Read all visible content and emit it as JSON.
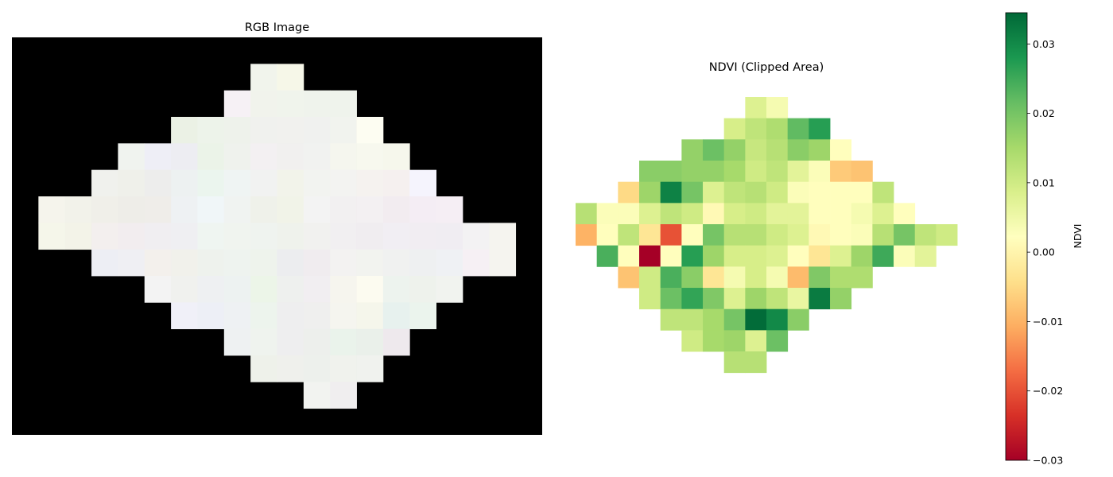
{
  "chart_data": [
    {
      "type": "heatmap",
      "title": "RGB Image",
      "axis": "off",
      "grid": false,
      "rows": 15,
      "cols": 20,
      "background": "#000000",
      "cells": [
        [
          "#000000",
          "#000000",
          "#000000",
          "#000000",
          "#000000",
          "#000000",
          "#000000",
          "#000000",
          "#000000",
          "#000000",
          "#000000",
          "#000000",
          "#000000",
          "#000000",
          "#000000",
          "#000000",
          "#000000",
          "#000000",
          "#000000",
          "#000000"
        ],
        [
          "#000000",
          "#000000",
          "#000000",
          "#000000",
          "#000000",
          "#000000",
          "#000000",
          "#000000",
          "#000000",
          "#f1f4ec",
          "#f6f7e8",
          "#000000",
          "#000000",
          "#000000",
          "#000000",
          "#000000",
          "#000000",
          "#000000",
          "#000000",
          "#000000"
        ],
        [
          "#000000",
          "#000000",
          "#000000",
          "#000000",
          "#000000",
          "#000000",
          "#000000",
          "#000000",
          "#f6f1f5",
          "#f1f3ec",
          "#f0f4ec",
          "#eff3ec",
          "#eff3ec",
          "#000000",
          "#000000",
          "#000000",
          "#000000",
          "#000000",
          "#000000",
          "#000000"
        ],
        [
          "#000000",
          "#000000",
          "#000000",
          "#000000",
          "#000000",
          "#000000",
          "#ebf1e5",
          "#edf3ea",
          "#eef2eb",
          "#f0f1ee",
          "#f1f1ee",
          "#f0f1ef",
          "#f1f3ee",
          "#fdfdf2",
          "#000000",
          "#000000",
          "#000000",
          "#000000",
          "#000000",
          "#000000"
        ],
        [
          "#000000",
          "#000000",
          "#000000",
          "#000000",
          "#f0f3ef",
          "#eeeef6",
          "#ededf2",
          "#ebf3e8",
          "#eff2ed",
          "#f3f0f2",
          "#f1f0ef",
          "#f1f2f0",
          "#f5f6ee",
          "#f7f8ee",
          "#f6f7ec",
          "#000000",
          "#000000",
          "#000000",
          "#000000",
          "#000000"
        ],
        [
          "#000000",
          "#000000",
          "#000000",
          "#f0f1ed",
          "#eff0ea",
          "#ededec",
          "#edf1f1",
          "#ebf5ee",
          "#eff4f3",
          "#f1f2f1",
          "#f2f3ea",
          "#f2f3f0",
          "#f3f3f1",
          "#f5f2ef",
          "#f5f0ef",
          "#f5f4fd",
          "#000000",
          "#000000",
          "#000000",
          "#000000"
        ],
        [
          "#000000",
          "#f5f4ec",
          "#f2f2ea",
          "#f0efe9",
          "#eeede8",
          "#efede9",
          "#eef1f3",
          "#f0f6f8",
          "#f0f3f1",
          "#eff1ea",
          "#f1f3e8",
          "#f3f3f3",
          "#f2f0f1",
          "#f3f0f2",
          "#f2ecf0",
          "#f4edf4",
          "#f5eef4",
          "#000000",
          "#000000",
          "#000000"
        ],
        [
          "#000000",
          "#f5f6ea",
          "#f3f3e8",
          "#f3efee",
          "#f2edef",
          "#f0eef1",
          "#efeff2",
          "#eff5f1",
          "#f0f4ef",
          "#eff3ef",
          "#eff2ec",
          "#f1f1ef",
          "#f1eff1",
          "#f0edf0",
          "#f1eef3",
          "#f1edf2",
          "#f0edf2",
          "#f3f2f3",
          "#f5f4ef",
          "#000000"
        ],
        [
          "#000000",
          "#000000",
          "#000000",
          "#edeef4",
          "#efeff3",
          "#f3f0ec",
          "#f1f1eb",
          "#eef2ed",
          "#eef3ef",
          "#eef3ec",
          "#ecedef",
          "#f0ecef",
          "#f3f2f1",
          "#f2f3ef",
          "#f0f1f0",
          "#eef0f1",
          "#eff1f4",
          "#f6f0f4",
          "#f5f4ef",
          "#000000"
        ],
        [
          "#000000",
          "#000000",
          "#000000",
          "#000000",
          "#000000",
          "#f3f3f3",
          "#f0f1ee",
          "#eef0f2",
          "#edf2f1",
          "#ecf5e8",
          "#eef0ee",
          "#f1eef1",
          "#f6f5ee",
          "#fcfbf0",
          "#edf3ee",
          "#eef2ec",
          "#f1f3ef",
          "#000000",
          "#000000",
          "#000000"
        ],
        [
          "#000000",
          "#000000",
          "#000000",
          "#000000",
          "#000000",
          "#000000",
          "#f0f0f8",
          "#edeff6",
          "#eef1f3",
          "#edf4ed",
          "#eeeeef",
          "#efefee",
          "#f5f5ef",
          "#f5f6eb",
          "#e7f1ee",
          "#ebf4ed",
          "#000000",
          "#000000",
          "#000000",
          "#000000"
        ],
        [
          "#000000",
          "#000000",
          "#000000",
          "#000000",
          "#000000",
          "#000000",
          "#000000",
          "#000000",
          "#eef1f2",
          "#eff3ee",
          "#eeeeef",
          "#edefec",
          "#eaf3eb",
          "#eaf0ea",
          "#eee9ed",
          "#000000",
          "#000000",
          "#000000",
          "#000000",
          "#000000"
        ],
        [
          "#000000",
          "#000000",
          "#000000",
          "#000000",
          "#000000",
          "#000000",
          "#000000",
          "#000000",
          "#000000",
          "#eef1ea",
          "#eff0ec",
          "#edf0ec",
          "#f0f2ed",
          "#f0f2ee",
          "#000000",
          "#000000",
          "#000000",
          "#000000",
          "#000000",
          "#000000"
        ],
        [
          "#000000",
          "#000000",
          "#000000",
          "#000000",
          "#000000",
          "#000000",
          "#000000",
          "#000000",
          "#000000",
          "#000000",
          "#000000",
          "#f2f3f0",
          "#f0eeef",
          "#000000",
          "#000000",
          "#000000",
          "#000000",
          "#000000",
          "#000000",
          "#000000"
        ],
        [
          "#000000",
          "#000000",
          "#000000",
          "#000000",
          "#000000",
          "#000000",
          "#000000",
          "#000000",
          "#000000",
          "#000000",
          "#000000",
          "#000000",
          "#000000",
          "#000000",
          "#000000",
          "#000000",
          "#000000",
          "#000000",
          "#000000",
          "#000000"
        ]
      ]
    },
    {
      "type": "heatmap",
      "title": "NDVI (Clipped Area)",
      "axis": "off",
      "grid": false,
      "rows": 13,
      "cols": 18,
      "colormap": "RdYlGn",
      "vmin": -0.03,
      "vmax": 0.0345,
      "colorbar": {
        "label": "NDVI",
        "ticks": [
          0.03,
          0.02,
          0.01,
          0.0,
          -0.01,
          -0.02,
          -0.03
        ],
        "tick_labels": [
          "0.03",
          "0.02",
          "0.01",
          "0.00",
          "−0.01",
          "−0.02",
          "−0.03"
        ]
      },
      "values": [
        [
          null,
          null,
          null,
          null,
          null,
          null,
          null,
          null,
          0.008,
          0.004,
          null,
          null,
          null,
          null,
          null,
          null,
          null,
          null
        ],
        [
          null,
          null,
          null,
          null,
          null,
          null,
          null,
          0.009,
          0.012,
          0.014,
          0.022,
          0.027,
          null,
          null,
          null,
          null,
          null,
          null
        ],
        [
          null,
          null,
          null,
          null,
          null,
          0.017,
          0.021,
          0.017,
          0.011,
          0.013,
          0.018,
          0.016,
          0.002,
          null,
          null,
          null,
          null,
          null
        ],
        [
          null,
          null,
          null,
          0.018,
          0.018,
          0.017,
          0.017,
          0.015,
          0.01,
          0.012,
          0.007,
          0.003,
          -0.007,
          -0.008,
          null,
          null,
          null,
          null
        ],
        [
          null,
          null,
          -0.005,
          0.016,
          0.031,
          0.02,
          0.008,
          0.012,
          0.013,
          0.01,
          0.003,
          0.002,
          0.002,
          0.002,
          0.012,
          null,
          null,
          null
        ],
        [
          0.013,
          0.003,
          0.003,
          0.008,
          0.012,
          0.01,
          0.001,
          0.009,
          0.01,
          0.007,
          0.007,
          0.002,
          0.002,
          0.004,
          0.008,
          0.002,
          null,
          null
        ],
        [
          -0.01,
          0.002,
          0.012,
          -0.003,
          -0.02,
          0.002,
          0.02,
          0.013,
          0.013,
          0.01,
          0.008,
          0.001,
          0.002,
          0.003,
          0.013,
          0.02,
          0.012,
          0.01
        ],
        [
          null,
          0.024,
          0.002,
          -0.03,
          0.002,
          0.027,
          0.016,
          0.009,
          0.009,
          0.008,
          0.002,
          -0.003,
          0.008,
          0.016,
          0.025,
          0.003,
          0.007,
          null
        ],
        [
          null,
          null,
          -0.008,
          0.01,
          0.024,
          0.018,
          -0.003,
          0.004,
          0.009,
          0.004,
          -0.009,
          0.019,
          0.014,
          0.014,
          null,
          null,
          null,
          null
        ],
        [
          null,
          null,
          null,
          0.01,
          0.021,
          0.026,
          0.019,
          0.008,
          0.016,
          0.012,
          0.006,
          0.032,
          0.017,
          null,
          null,
          null,
          null,
          null
        ],
        [
          null,
          null,
          null,
          null,
          0.012,
          0.012,
          0.015,
          0.02,
          0.034,
          0.03,
          0.018,
          null,
          null,
          null,
          null,
          null,
          null,
          null
        ],
        [
          null,
          null,
          null,
          null,
          null,
          0.01,
          0.015,
          0.016,
          0.008,
          0.021,
          null,
          null,
          null,
          null,
          null,
          null,
          null,
          null
        ],
        [
          null,
          null,
          null,
          null,
          null,
          null,
          null,
          0.013,
          0.013,
          null,
          null,
          null,
          null,
          null,
          null,
          null,
          null,
          null
        ]
      ]
    }
  ]
}
